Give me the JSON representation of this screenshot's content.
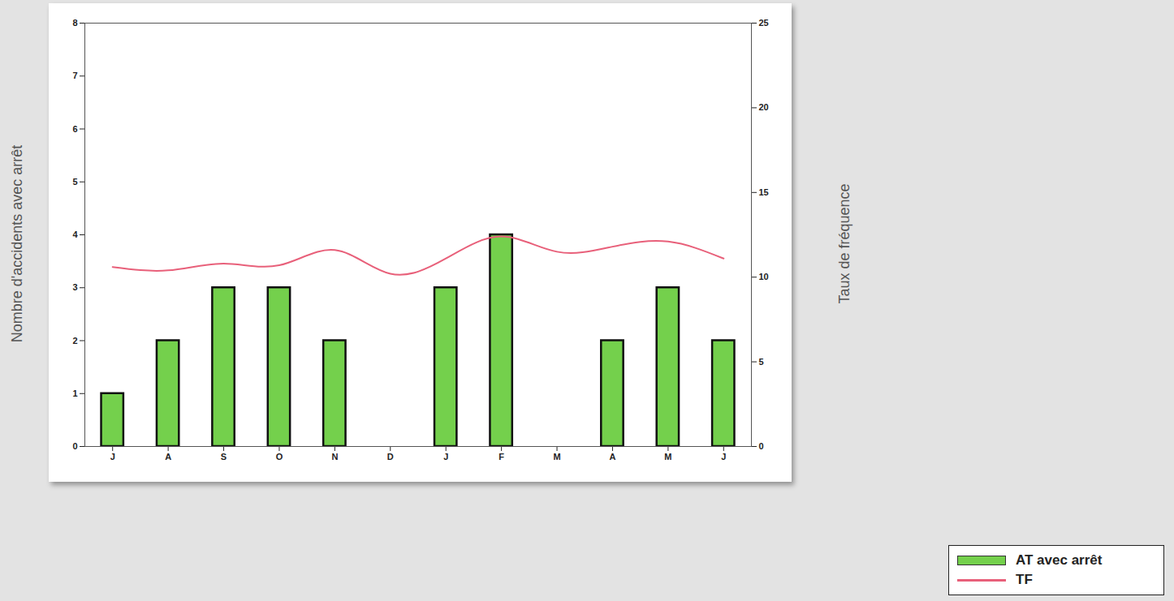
{
  "chart_data": {
    "type": "bar",
    "categories": [
      "J",
      "A",
      "S",
      "O",
      "N",
      "D",
      "J",
      "F",
      "M",
      "A",
      "M",
      "J"
    ],
    "series": [
      {
        "name": "AT avec arrêt",
        "type": "bar",
        "color": "#74d04c",
        "values": [
          1,
          2,
          3,
          3,
          2,
          null,
          3,
          4,
          null,
          2,
          3,
          2
        ]
      },
      {
        "name": "TF",
        "type": "line",
        "color": "#e8607a",
        "axis": "y2",
        "values": [
          10.6,
          10.4,
          10.8,
          10.7,
          11.6,
          10.2,
          11.1,
          12.4,
          11.5,
          11.8,
          12.1,
          11.1
        ]
      }
    ],
    "ylabel": "Nombre d'accidents avec arrêt",
    "y2label": "Taux de fréquence",
    "ylim": [
      0,
      8
    ],
    "yticks": [
      0,
      1,
      2,
      3,
      4,
      5,
      6,
      7,
      8
    ],
    "y2lim": [
      0,
      25
    ],
    "y2ticks": [
      0,
      5,
      10,
      15,
      20,
      25
    ],
    "legend": "bottom right"
  }
}
